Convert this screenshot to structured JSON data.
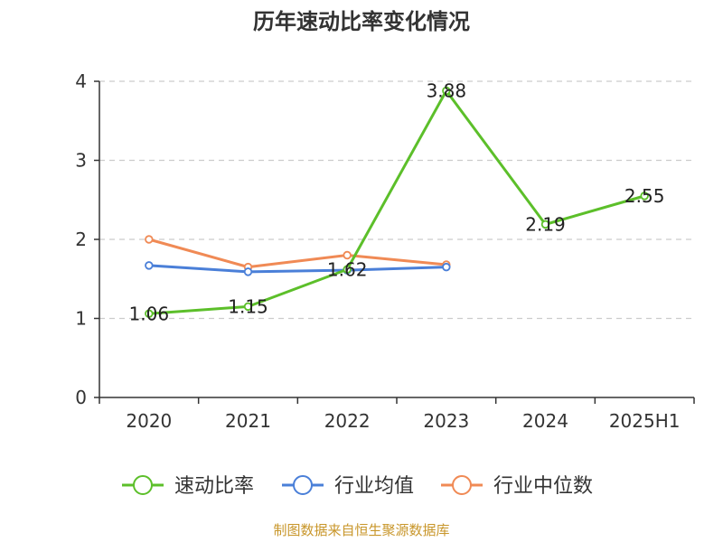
{
  "chart_data": {
    "type": "line",
    "title": "历年速动比率变化情况",
    "categories": [
      "2020",
      "2021",
      "2022",
      "2023",
      "2024",
      "2025H1"
    ],
    "ylim": [
      0,
      4
    ],
    "yticks": [
      "0",
      "1",
      "2",
      "3",
      "4"
    ],
    "grid": "horizontal dashed",
    "legend_position": "bottom",
    "series": [
      {
        "name": "速动比率",
        "color": "#5cbf2a",
        "values": [
          1.06,
          1.15,
          1.62,
          3.88,
          2.19,
          2.55
        ],
        "labels": [
          "1.06",
          "1.15",
          "1.62",
          "3.88",
          "2.19",
          "2.55"
        ]
      },
      {
        "name": "行业均值",
        "color": "#4a7fd8",
        "values": [
          1.67,
          1.59,
          1.61,
          1.65,
          null,
          null
        ]
      },
      {
        "name": "行业中位数",
        "color": "#f08a55",
        "values": [
          2.0,
          1.65,
          1.8,
          1.68,
          null,
          null
        ]
      }
    ]
  },
  "source_note": "制图数据来自恒生聚源数据库"
}
